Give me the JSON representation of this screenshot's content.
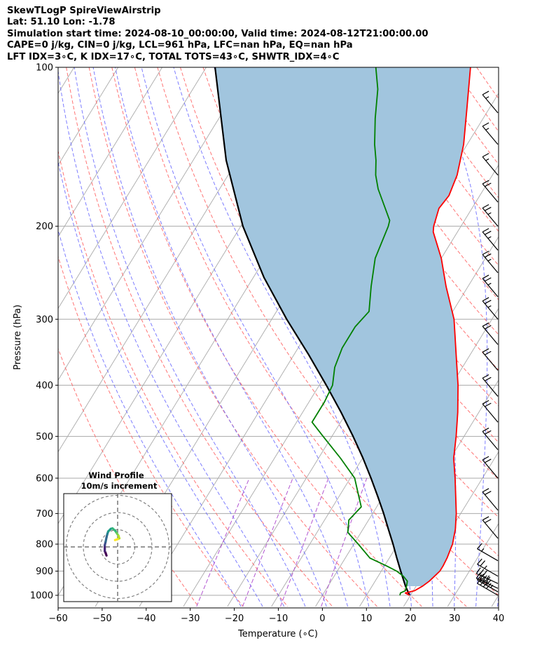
{
  "header": {
    "line1": "SkewTLogP SpireViewAirstrip",
    "line2": "Lat: 51.10   Lon: -1.78",
    "line3": "Simulation start time: 2024-08-10_00:00:00, Valid time: 2024-08-12T21:00:00.00",
    "line4": "CAPE=0 j/kg, CIN=0 j/kg, LCL=961 hPa, LFC=nan hPa, EQ=nan hPa",
    "line5": "LFT IDX=3∘C, K IDX=17∘C, TOTAL TOTS=43∘C, SHWTR_IDX=4∘C"
  },
  "colors": {
    "temperature": "#ff0000",
    "dewpoint": "#008000",
    "parcel": "#000000",
    "cape_fill": "#a1c5de",
    "dry_adiabat": "#ff6666",
    "moist_adiabat": "#6666ff",
    "mixing_ratio": "#aa44cc",
    "isotherm": "#aaaaaa"
  },
  "chart_data": [
    {
      "type": "line",
      "chart_kind": "skew-T log-P",
      "xlabel": "Temperature (∘C)",
      "ylabel": "Pressure (hPa)",
      "xlim": [
        -60,
        40
      ],
      "ylim": [
        1050,
        100
      ],
      "y_scale": "log",
      "x_ticks": [
        "−60",
        "−50",
        "−40",
        "−30",
        "−20",
        "−10",
        "0",
        "10",
        "20",
        "30",
        "40"
      ],
      "y_ticks": [
        "100",
        "200",
        "300",
        "400",
        "500",
        "600",
        "700",
        "800",
        "900",
        "1000"
      ],
      "grid": true,
      "series": [
        {
          "key": "temperature",
          "points": [
            [
              1000,
              19.8
            ],
            [
              990,
              18.5
            ],
            [
              980,
              20.3
            ],
            [
              960,
              21.5
            ],
            [
              940,
              22.3
            ],
            [
              920,
              22.8
            ],
            [
              900,
              23.3
            ],
            [
              880,
              23.3
            ],
            [
              850,
              23.1
            ],
            [
              800,
              22.4
            ],
            [
              750,
              21.0
            ],
            [
              700,
              19.0
            ],
            [
              650,
              16.5
            ],
            [
              600,
              13.8
            ],
            [
              550,
              10.7
            ],
            [
              500,
              8.2
            ],
            [
              450,
              5.2
            ],
            [
              400,
              1.5
            ],
            [
              350,
              -3.2
            ],
            [
              300,
              -8.6
            ],
            [
              260,
              -15.0
            ],
            [
              230,
              -20.0
            ],
            [
              205,
              -25.5
            ],
            [
              200,
              -26.2
            ],
            [
              185,
              -27.5
            ],
            [
              175,
              -27.0
            ],
            [
              160,
              -28.0
            ],
            [
              140,
              -30.8
            ],
            [
              120,
              -35.0
            ],
            [
              100,
              -40.0
            ]
          ]
        },
        {
          "key": "dewpoint",
          "points": [
            [
              1000,
              17.6
            ],
            [
              990,
              17.4
            ],
            [
              980,
              18.2
            ],
            [
              960,
              17.8
            ],
            [
              940,
              17.3
            ],
            [
              920,
              15.7
            ],
            [
              900,
              13.5
            ],
            [
              880,
              10.5
            ],
            [
              850,
              5.6
            ],
            [
              800,
              1.0
            ],
            [
              760,
              -3.0
            ],
            [
              720,
              -4.5
            ],
            [
              680,
              -3.5
            ],
            [
              650,
              -5.5
            ],
            [
              600,
              -9.0
            ],
            [
              550,
              -15.0
            ],
            [
              500,
              -22.0
            ],
            [
              470,
              -26.5
            ],
            [
              430,
              -26.5
            ],
            [
              400,
              -27.0
            ],
            [
              370,
              -29.0
            ],
            [
              340,
              -30.0
            ],
            [
              310,
              -30.0
            ],
            [
              290,
              -29.0
            ],
            [
              260,
              -32.0
            ],
            [
              230,
              -35.0
            ],
            [
              200,
              -36.5
            ],
            [
              195,
              -37.0
            ],
            [
              170,
              -44.0
            ],
            [
              160,
              -46.5
            ],
            [
              150,
              -48.5
            ],
            [
              140,
              -51.0
            ],
            [
              125,
              -54.5
            ],
            [
              110,
              -58.0
            ],
            [
              100,
              -61.5
            ]
          ]
        },
        {
          "key": "parcel",
          "points": [
            [
              1000,
              19.8
            ],
            [
              961,
              17.6
            ],
            [
              900,
              14.4
            ],
            [
              850,
              11.7
            ],
            [
              800,
              8.9
            ],
            [
              750,
              5.8
            ],
            [
              700,
              2.5
            ],
            [
              650,
              -1.2
            ],
            [
              600,
              -5.3
            ],
            [
              550,
              -9.9
            ],
            [
              500,
              -15.2
            ],
            [
              450,
              -21.3
            ],
            [
              400,
              -28.4
            ],
            [
              350,
              -36.7
            ],
            [
              300,
              -46.6
            ],
            [
              250,
              -57.6
            ],
            [
              200,
              -69.5
            ],
            [
              150,
              -82.5
            ],
            [
              100,
              -98.0
            ]
          ]
        }
      ],
      "wind_barbs": [
        {
          "p": 1000,
          "speed": 40,
          "dir": 300
        },
        {
          "p": 985,
          "speed": 45,
          "dir": 300
        },
        {
          "p": 970,
          "speed": 40,
          "dir": 295
        },
        {
          "p": 950,
          "speed": 35,
          "dir": 295
        },
        {
          "p": 920,
          "speed": 25,
          "dir": 300
        },
        {
          "p": 860,
          "speed": 15,
          "dir": 300
        },
        {
          "p": 780,
          "speed": 20,
          "dir": 320
        },
        {
          "p": 690,
          "speed": 20,
          "dir": 320
        },
        {
          "p": 600,
          "speed": 20,
          "dir": 320
        },
        {
          "p": 530,
          "speed": 20,
          "dir": 320
        },
        {
          "p": 470,
          "speed": 20,
          "dir": 320
        },
        {
          "p": 420,
          "speed": 20,
          "dir": 320
        },
        {
          "p": 375,
          "speed": 20,
          "dir": 320
        },
        {
          "p": 335,
          "speed": 20,
          "dir": 320
        },
        {
          "p": 300,
          "speed": 25,
          "dir": 320
        },
        {
          "p": 272,
          "speed": 25,
          "dir": 320
        },
        {
          "p": 245,
          "speed": 25,
          "dir": 320
        },
        {
          "p": 222,
          "speed": 25,
          "dir": 320
        },
        {
          "p": 200,
          "speed": 25,
          "dir": 320
        },
        {
          "p": 180,
          "speed": 20,
          "dir": 320
        },
        {
          "p": 160,
          "speed": 15,
          "dir": 320
        },
        {
          "p": 140,
          "speed": 15,
          "dir": 320
        },
        {
          "p": 122,
          "speed": 15,
          "dir": 320
        }
      ]
    },
    {
      "type": "scatter",
      "title": "Wind Profile",
      "subtitle": "10m/s increment",
      "ring_increment": 10,
      "hodograph": [
        [
          -6.5,
          -5
        ],
        [
          -7,
          -3.5
        ],
        [
          -7.5,
          -2.5
        ],
        [
          -7.5,
          -1
        ],
        [
          -7.5,
          1
        ],
        [
          -7,
          3
        ],
        [
          -6.5,
          5.5
        ],
        [
          -6,
          7.5
        ],
        [
          -5.5,
          9
        ],
        [
          -4,
          10.5
        ],
        [
          -3,
          10.8
        ],
        [
          -1.5,
          9.5
        ],
        [
          -0.5,
          8
        ],
        [
          0.5,
          6.5
        ],
        [
          1,
          5
        ],
        [
          0,
          4.5
        ],
        [
          -1.5,
          4
        ]
      ]
    }
  ]
}
